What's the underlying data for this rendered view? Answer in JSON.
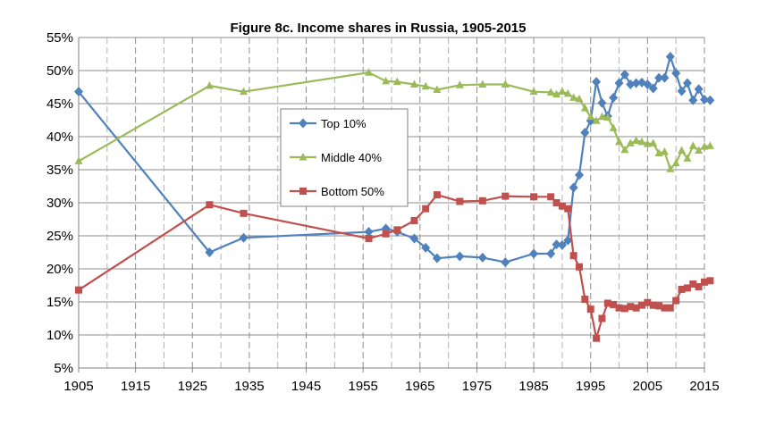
{
  "chart_data": {
    "type": "line",
    "title": "Figure 8c. Income shares in Russia, 1905-2015",
    "xlabel": "",
    "ylabel": "",
    "xlim": [
      1905,
      2015
    ],
    "ylim": [
      5,
      55
    ],
    "x_ticks": [
      "1905",
      "1915",
      "1925",
      "1935",
      "1945",
      "1955",
      "1965",
      "1975",
      "1985",
      "1995",
      "2005",
      "2015"
    ],
    "y_ticks": [
      "5%",
      "10%",
      "15%",
      "20%",
      "25%",
      "30%",
      "35%",
      "40%",
      "45%",
      "50%",
      "55%"
    ],
    "grid": "major horizontal solid, vertical dashed",
    "legend_position": "center",
    "series": [
      {
        "name": "Top 10%",
        "color": "#4F81BD",
        "marker": "diamond",
        "points": [
          [
            1905,
            46.8
          ],
          [
            1928,
            22.5
          ],
          [
            1934,
            24.7
          ],
          [
            1956,
            25.6
          ],
          [
            1959,
            26.1
          ],
          [
            1961,
            25.6
          ],
          [
            1964,
            24.6
          ],
          [
            1966,
            23.2
          ],
          [
            1968,
            21.6
          ],
          [
            1972,
            21.9
          ],
          [
            1976,
            21.7
          ],
          [
            1980,
            21.0
          ],
          [
            1985,
            22.3
          ],
          [
            1988,
            22.3
          ],
          [
            1989,
            23.7
          ],
          [
            1990,
            23.6
          ],
          [
            1991,
            24.3
          ],
          [
            1992,
            32.3
          ],
          [
            1993,
            34.2
          ],
          [
            1994,
            40.6
          ],
          [
            1995,
            42.4
          ],
          [
            1996,
            48.3
          ],
          [
            1997,
            45.1
          ],
          [
            1998,
            43.1
          ],
          [
            1999,
            45.9
          ],
          [
            2000,
            48.1
          ],
          [
            2001,
            49.4
          ],
          [
            2002,
            47.9
          ],
          [
            2003,
            48.1
          ],
          [
            2004,
            48.2
          ],
          [
            2005,
            47.9
          ],
          [
            2006,
            47.3
          ],
          [
            2007,
            48.9
          ],
          [
            2008,
            48.9
          ],
          [
            2009,
            52.1
          ],
          [
            2010,
            49.6
          ],
          [
            2011,
            46.9
          ],
          [
            2012,
            48.1
          ],
          [
            2013,
            45.5
          ],
          [
            2014,
            47.2
          ],
          [
            2015,
            45.6
          ],
          [
            2016,
            45.5
          ]
        ]
      },
      {
        "name": "Middle 40%",
        "color": "#9BBB59",
        "marker": "triangle",
        "points": [
          [
            1905,
            36.3
          ],
          [
            1928,
            47.7
          ],
          [
            1934,
            46.8
          ],
          [
            1956,
            49.7
          ],
          [
            1959,
            48.4
          ],
          [
            1961,
            48.3
          ],
          [
            1964,
            47.9
          ],
          [
            1966,
            47.6
          ],
          [
            1968,
            47.1
          ],
          [
            1972,
            47.8
          ],
          [
            1976,
            47.9
          ],
          [
            1980,
            47.9
          ],
          [
            1985,
            46.8
          ],
          [
            1988,
            46.7
          ],
          [
            1989,
            46.4
          ],
          [
            1990,
            46.8
          ],
          [
            1991,
            46.5
          ],
          [
            1992,
            45.9
          ],
          [
            1993,
            45.7
          ],
          [
            1994,
            44.3
          ],
          [
            1995,
            43.0
          ],
          [
            1996,
            42.4
          ],
          [
            1997,
            43.0
          ],
          [
            1998,
            42.9
          ],
          [
            1999,
            41.3
          ],
          [
            2000,
            39.2
          ],
          [
            2001,
            38.0
          ],
          [
            2002,
            39.0
          ],
          [
            2003,
            39.4
          ],
          [
            2004,
            39.2
          ],
          [
            2005,
            38.9
          ],
          [
            2006,
            39.0
          ],
          [
            2007,
            37.5
          ],
          [
            2008,
            37.7
          ],
          [
            2009,
            35.1
          ],
          [
            2010,
            36.0
          ],
          [
            2011,
            37.9
          ],
          [
            2012,
            36.7
          ],
          [
            2013,
            38.6
          ],
          [
            2014,
            37.9
          ],
          [
            2015,
            38.5
          ],
          [
            2016,
            38.6
          ]
        ]
      },
      {
        "name": "Bottom 50%",
        "color": "#C0504D",
        "marker": "square",
        "points": [
          [
            1905,
            16.8
          ],
          [
            1928,
            29.7
          ],
          [
            1934,
            28.4
          ],
          [
            1956,
            24.6
          ],
          [
            1959,
            25.3
          ],
          [
            1961,
            25.9
          ],
          [
            1964,
            27.3
          ],
          [
            1966,
            29.1
          ],
          [
            1968,
            31.2
          ],
          [
            1972,
            30.2
          ],
          [
            1976,
            30.3
          ],
          [
            1980,
            31.0
          ],
          [
            1985,
            30.9
          ],
          [
            1988,
            30.9
          ],
          [
            1989,
            30.0
          ],
          [
            1990,
            29.5
          ],
          [
            1991,
            29.1
          ],
          [
            1992,
            22.0
          ],
          [
            1993,
            20.3
          ],
          [
            1994,
            15.4
          ],
          [
            1995,
            13.9
          ],
          [
            1996,
            9.5
          ],
          [
            1997,
            12.5
          ],
          [
            1998,
            14.8
          ],
          [
            1999,
            14.6
          ],
          [
            2000,
            14.1
          ],
          [
            2001,
            14.0
          ],
          [
            2002,
            14.3
          ],
          [
            2003,
            14.1
          ],
          [
            2004,
            14.5
          ],
          [
            2005,
            14.9
          ],
          [
            2006,
            14.5
          ],
          [
            2007,
            14.4
          ],
          [
            2008,
            14.1
          ],
          [
            2009,
            14.1
          ],
          [
            2010,
            15.2
          ],
          [
            2011,
            16.9
          ],
          [
            2012,
            17.1
          ],
          [
            2013,
            17.7
          ],
          [
            2014,
            17.3
          ],
          [
            2015,
            18.0
          ],
          [
            2016,
            18.2
          ]
        ]
      }
    ]
  }
}
